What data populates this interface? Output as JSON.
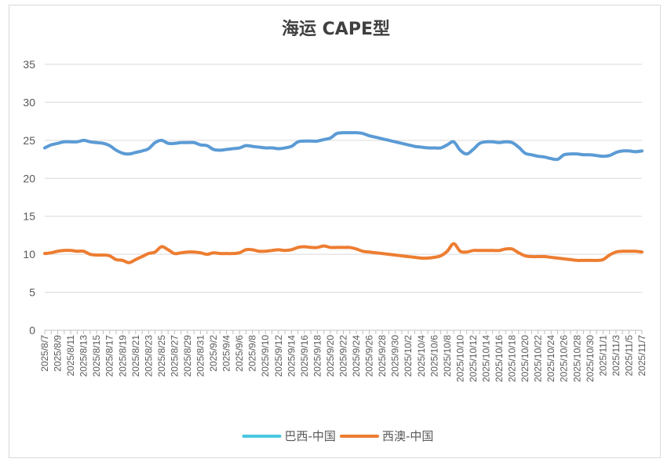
{
  "chart_data": {
    "type": "line",
    "title": "海运 CAPE型",
    "xlabel": "",
    "ylabel": "",
    "ylim": [
      0,
      35
    ],
    "yticks": [
      0,
      5,
      10,
      15,
      20,
      25,
      30,
      35
    ],
    "grid": "horizontal",
    "legend_position": "bottom",
    "x_tick_labels": [
      "2025/8/7",
      "2025/8/9",
      "2025/8/11",
      "2025/8/13",
      "2025/8/15",
      "2025/8/17",
      "2025/8/19",
      "2025/8/21",
      "2025/8/23",
      "2025/8/25",
      "2025/8/27",
      "2025/8/29",
      "2025/8/31",
      "2025/9/2",
      "2025/9/4",
      "2025/9/6",
      "2025/9/8",
      "2025/9/10",
      "2025/9/12",
      "2025/9/14",
      "2025/9/16",
      "2025/9/18",
      "2025/9/20",
      "2025/9/22",
      "2025/9/24",
      "2025/9/26",
      "2025/9/28",
      "2025/9/30",
      "2025/10/2",
      "2025/10/4",
      "2025/10/6",
      "2025/10/8",
      "2025/10/10",
      "2025/10/12",
      "2025/10/14",
      "2025/10/16",
      "2025/10/18",
      "2025/10/20",
      "2025/10/22",
      "2025/10/24",
      "2025/10/26",
      "2025/10/28",
      "2025/10/30",
      "2025/11/1",
      "2025/11/3",
      "2025/11/5",
      "2025/11/7"
    ],
    "x_days": [
      0,
      2,
      4,
      6,
      8,
      10,
      12,
      14,
      16,
      18,
      20,
      22,
      24,
      26,
      28,
      30,
      32,
      34,
      36,
      38,
      40,
      42,
      44,
      46,
      48,
      50,
      52,
      54,
      56,
      58,
      60,
      62,
      64,
      66,
      68,
      70,
      72,
      74,
      76,
      78,
      80,
      82,
      84,
      86,
      88,
      90,
      92
    ],
    "series": [
      {
        "name": "巴西-中国",
        "color": "#5B9BD5",
        "legend_color": "#4BC7E0",
        "x": [
          0,
          1,
          2,
          3,
          4,
          5,
          6,
          7,
          8,
          9,
          10,
          11,
          12,
          13,
          14,
          15,
          16,
          17,
          18,
          19,
          20,
          21,
          22,
          23,
          24,
          25,
          26,
          27,
          28,
          29,
          30,
          31,
          32,
          33,
          34,
          35,
          36,
          37,
          38,
          39,
          40,
          41,
          42,
          43,
          44,
          45,
          46,
          47,
          48,
          49,
          50,
          51,
          52,
          53,
          54,
          55,
          56,
          57,
          58,
          59,
          60,
          61,
          62,
          63,
          64,
          65,
          66,
          67,
          68,
          69,
          70,
          71,
          72,
          73,
          74,
          75,
          76,
          77,
          78,
          79,
          80,
          81,
          82,
          83,
          84,
          85,
          86,
          87,
          88,
          89,
          90,
          91,
          92
        ],
        "values": [
          24.0,
          24.4,
          24.6,
          24.8,
          24.8,
          24.8,
          25.0,
          24.8,
          24.7,
          24.6,
          24.3,
          23.7,
          23.3,
          23.2,
          23.4,
          23.6,
          23.9,
          24.7,
          25.0,
          24.6,
          24.6,
          24.7,
          24.7,
          24.7,
          24.4,
          24.3,
          23.8,
          23.7,
          23.8,
          23.9,
          24.0,
          24.3,
          24.2,
          24.1,
          24.0,
          24.0,
          23.9,
          24.0,
          24.2,
          24.8,
          24.9,
          24.9,
          24.9,
          25.1,
          25.3,
          25.9,
          26.0,
          26.0,
          26.0,
          25.9,
          25.6,
          25.4,
          25.2,
          25.0,
          24.8,
          24.6,
          24.4,
          24.2,
          24.1,
          24.0,
          24.0,
          24.0,
          24.4,
          24.8,
          23.7,
          23.2,
          23.8,
          24.6,
          24.8,
          24.8,
          24.7,
          24.8,
          24.7,
          24.1,
          23.3,
          23.1,
          22.9,
          22.8,
          22.6,
          22.5,
          23.1,
          23.2,
          23.2,
          23.1,
          23.1,
          23.0,
          22.9,
          23.0,
          23.4,
          23.6,
          23.6,
          23.5,
          23.6
        ]
      },
      {
        "name": "西澳-中国",
        "color": "#ED7D31",
        "legend_color": "#ED7D31",
        "x": [
          0,
          1,
          2,
          3,
          4,
          5,
          6,
          7,
          8,
          9,
          10,
          11,
          12,
          13,
          14,
          15,
          16,
          17,
          18,
          19,
          20,
          21,
          22,
          23,
          24,
          25,
          26,
          27,
          28,
          29,
          30,
          31,
          32,
          33,
          34,
          35,
          36,
          37,
          38,
          39,
          40,
          41,
          42,
          43,
          44,
          45,
          46,
          47,
          48,
          49,
          50,
          51,
          52,
          53,
          54,
          55,
          56,
          57,
          58,
          59,
          60,
          61,
          62,
          63,
          64,
          65,
          66,
          67,
          68,
          69,
          70,
          71,
          72,
          73,
          74,
          75,
          76,
          77,
          78,
          79,
          80,
          81,
          82,
          83,
          84,
          85,
          86,
          87,
          88,
          89,
          90,
          91,
          92
        ],
        "values": [
          10.1,
          10.2,
          10.4,
          10.5,
          10.5,
          10.4,
          10.4,
          10.0,
          9.9,
          9.9,
          9.8,
          9.3,
          9.2,
          8.9,
          9.3,
          9.7,
          10.1,
          10.3,
          11.0,
          10.6,
          10.1,
          10.2,
          10.3,
          10.3,
          10.2,
          10.0,
          10.2,
          10.1,
          10.1,
          10.1,
          10.2,
          10.6,
          10.6,
          10.4,
          10.4,
          10.5,
          10.6,
          10.5,
          10.6,
          10.9,
          11.0,
          10.9,
          10.9,
          11.1,
          10.9,
          10.9,
          10.9,
          10.9,
          10.7,
          10.4,
          10.3,
          10.2,
          10.1,
          10.0,
          9.9,
          9.8,
          9.7,
          9.6,
          9.5,
          9.5,
          9.6,
          9.8,
          10.4,
          11.4,
          10.4,
          10.3,
          10.5,
          10.5,
          10.5,
          10.5,
          10.5,
          10.7,
          10.7,
          10.2,
          9.8,
          9.7,
          9.7,
          9.7,
          9.6,
          9.5,
          9.4,
          9.3,
          9.2,
          9.2,
          9.2,
          9.2,
          9.3,
          9.9,
          10.3,
          10.4,
          10.4,
          10.4,
          10.3
        ]
      }
    ]
  }
}
